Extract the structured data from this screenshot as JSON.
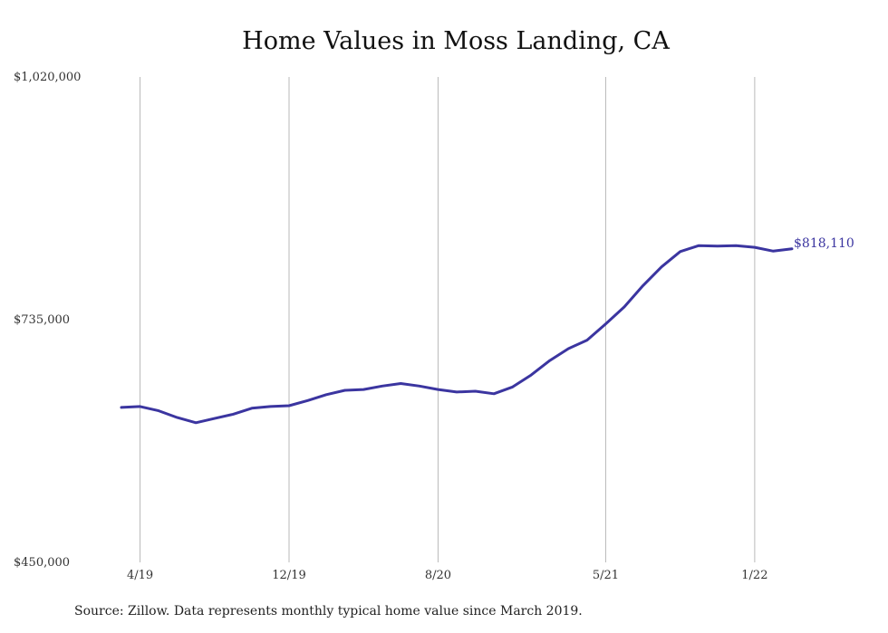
{
  "chart_data": {
    "type": "line",
    "title": "Home Values in Moss Landing, CA",
    "source": "Source: Zillow. Data represents monthly typical home value since March 2019.",
    "ylim": [
      450000,
      1020000
    ],
    "yticks": [
      {
        "value": 1020000,
        "label": "$1,020,000"
      },
      {
        "value": 735000,
        "label": "$735,000"
      },
      {
        "value": 450000,
        "label": "$450,000"
      }
    ],
    "xticks": [
      {
        "index": 1,
        "label": "4/19"
      },
      {
        "index": 9,
        "label": "12/19"
      },
      {
        "index": 17,
        "label": "8/20"
      },
      {
        "index": 26,
        "label": "5/21"
      },
      {
        "index": 34,
        "label": "1/22"
      }
    ],
    "grid": "vertical",
    "series": [
      {
        "color": "#3b35a0",
        "end_label": "$818,110",
        "x": [
          "3/19",
          "4/19",
          "5/19",
          "6/19",
          "7/19",
          "8/19",
          "9/19",
          "10/19",
          "11/19",
          "12/19",
          "1/20",
          "2/20",
          "3/20",
          "4/20",
          "5/20",
          "6/20",
          "7/20",
          "8/20",
          "9/20",
          "10/20",
          "11/20",
          "12/20",
          "1/21",
          "2/21",
          "3/21",
          "4/21",
          "5/21",
          "6/21",
          "7/21",
          "8/21",
          "9/21",
          "10/21",
          "11/21",
          "12/21",
          "1/22",
          "2/22",
          "3/22"
        ],
        "values": [
          632000,
          633000,
          628000,
          620000,
          614000,
          619000,
          624000,
          631000,
          633000,
          634000,
          640000,
          647000,
          652000,
          653000,
          657000,
          660000,
          657000,
          653000,
          650000,
          651000,
          648000,
          656000,
          670000,
          687000,
          701000,
          711000,
          730000,
          750000,
          775000,
          797000,
          815000,
          822000,
          821500,
          822000,
          820000,
          815500,
          818110
        ]
      }
    ]
  }
}
